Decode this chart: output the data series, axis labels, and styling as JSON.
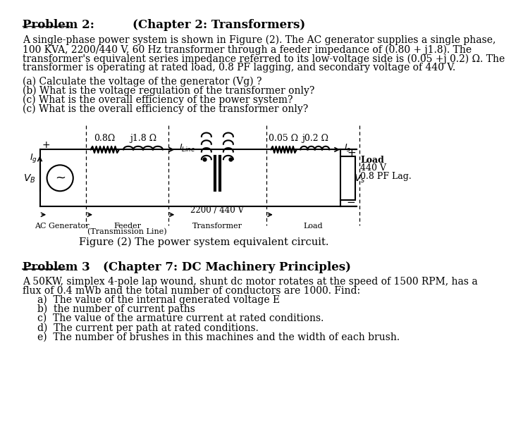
{
  "bg_color": "#ffffff",
  "title1": "Problem 2:",
  "title1_chapter": "(Chapter 2: Transformers)",
  "para1_lines": [
    "A single-phase power system is shown in Figure (2). The AC generator supplies a single phase,",
    "100 KVA, 2200/440 V, 60 Hz transformer through a feeder impedance of (0.80 + j1.8). The",
    "transformer's equivalent series impedance referred to its low-voltage side is (0.05 +j 0.2) Ω. The",
    "transformer is operating at rated load, 0.8 PF lagging, and secondary voltage of 440 V."
  ],
  "questions": [
    "(a) Calculate the voltage of the generator (Vg) ?",
    "(b) What is the voltage regulation of the transformer only?",
    "(c) What is the overall efficiency of the power system?",
    "(c) What is the overall efficiency of the transformer only?"
  ],
  "fig_caption": "Figure (2) The power system equivalent circuit.",
  "title2": "Problem 3",
  "title2_chapter": "(Chapter 7: DC Machinery Principles)",
  "para2_lines": [
    "A 50KW, simplex 4-pole lap wound, shunt dc motor rotates at the speed of 1500 RPM, has a",
    "flux of 0.4 mWb and the total number of conductors are 1000. Find:"
  ],
  "items": [
    "a)  The value of the internal generated voltage E",
    "b)  the number of current paths",
    "c)  The value of the armature current at rated conditions.",
    "d)  The current per path at rated conditions.",
    "e)  The number of brushes in this machines and the width of each brush."
  ],
  "circuit": {
    "R_line": "0.8Ω",
    "jX_line": "j1.8 Ω",
    "R_tx": "0.05 Ω",
    "jX_tx": "j0.2 Ω",
    "transformer_ratio": "2200 / 440 V",
    "load_label": "Load",
    "load_v": "440 V",
    "load_pf": "0.8 PF Lag.",
    "label_gen": "AC Generator",
    "label_feeder1": "Feeder",
    "label_feeder2": "(Transmission Line)",
    "label_transformer": "Transformer",
    "label_load": "Load"
  }
}
